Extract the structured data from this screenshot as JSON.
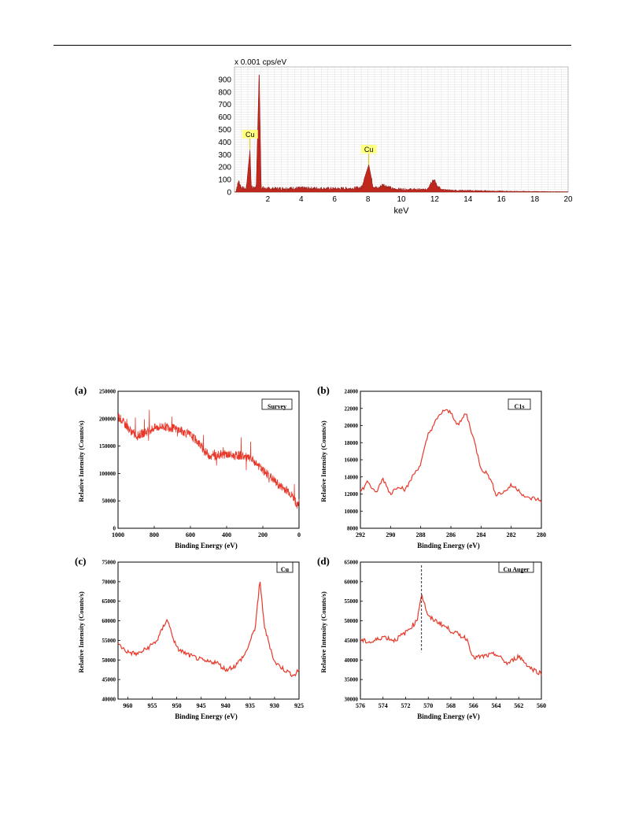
{
  "page": {
    "header_rule": true
  },
  "eds": {
    "unit_label": "x 0.001 cps/eV",
    "xlabel": "keV",
    "peak_labels": [
      "Cu",
      "Cu"
    ],
    "colors": {
      "fill": "#c0281e",
      "stroke": "#8b1410",
      "label_bg": "#ffff80",
      "grid": "#d9d9d9"
    }
  },
  "xps": {
    "panels": [
      {
        "letter": "(a)",
        "legend": "Survey",
        "xlabel": "Binding Energy (eV)",
        "ylabel": "Relative Intensity (Counts/s)"
      },
      {
        "letter": "(b)",
        "legend": "C1s",
        "xlabel": "Binding Energy (eV)",
        "ylabel": "Relative Intensity (Counts/s)"
      },
      {
        "letter": "(c)",
        "legend": "Cu",
        "xlabel": "Binding Energy (eV)",
        "ylabel": "Relative Intensity (Counts/s)"
      },
      {
        "letter": "(d)",
        "legend": "Cu Auger",
        "xlabel": "Binding Energy (eV)",
        "ylabel": "Relative Intensity (Counts/s)"
      }
    ],
    "line_color": "#e8382a"
  },
  "chart_data": [
    {
      "type": "area",
      "xlabel": "keV",
      "ylabel": "x 0.001 cps/eV",
      "xlim": [
        0,
        20
      ],
      "ylim": [
        0,
        1000
      ],
      "xticks": [
        2,
        4,
        6,
        8,
        10,
        12,
        14,
        16,
        18,
        20
      ],
      "yticks": [
        0,
        100,
        200,
        300,
        400,
        500,
        600,
        700,
        800,
        900
      ],
      "grid": true,
      "x": [
        0.1,
        0.25,
        0.4,
        0.55,
        0.7,
        0.93,
        1.0,
        1.1,
        1.3,
        1.48,
        1.6,
        1.8,
        2.2,
        3.0,
        4.0,
        5.0,
        6.0,
        7.0,
        7.6,
        8.05,
        8.3,
        8.6,
        8.9,
        9.5,
        10.5,
        11.5,
        11.9,
        12.1,
        12.4,
        13.0,
        14.0,
        15.0,
        16.0,
        17.0,
        18.0,
        19.0,
        20.0
      ],
      "y": [
        20,
        90,
        40,
        30,
        25,
        340,
        60,
        30,
        40,
        975,
        40,
        30,
        28,
        30,
        32,
        30,
        28,
        30,
        35,
        220,
        50,
        28,
        60,
        25,
        22,
        20,
        100,
        60,
        18,
        15,
        12,
        10,
        8,
        6,
        5,
        4,
        3
      ],
      "annotations": [
        {
          "text": "Cu",
          "x": 0.93,
          "y": 340
        },
        {
          "text": "Cu",
          "x": 8.05,
          "y": 220
        }
      ]
    },
    {
      "type": "line",
      "title": "Survey",
      "xlabel": "Binding Energy (eV)",
      "ylabel": "Relative Intensity (Counts/s)",
      "xlim": [
        1000,
        0
      ],
      "ylim": [
        0,
        250000
      ],
      "xticks": [
        1000,
        800,
        600,
        400,
        200,
        0
      ],
      "yticks": [
        0,
        50000,
        100000,
        150000,
        200000,
        250000
      ],
      "x": [
        1000,
        950,
        900,
        850,
        800,
        750,
        700,
        650,
        600,
        560,
        520,
        480,
        440,
        400,
        360,
        320,
        280,
        240,
        200,
        170,
        140,
        110,
        80,
        60,
        40,
        20,
        10,
        0
      ],
      "y": [
        205000,
        185000,
        168000,
        175000,
        183000,
        186000,
        183000,
        178000,
        170000,
        158000,
        140000,
        130000,
        134000,
        135000,
        132000,
        133000,
        128000,
        120000,
        105000,
        98000,
        88000,
        78000,
        72000,
        68000,
        60000,
        50000,
        38000,
        50000
      ]
    },
    {
      "type": "line",
      "title": "C1s",
      "xlabel": "Binding Energy (eV)",
      "ylabel": "Relative Intensity (Counts/s)",
      "xlim": [
        292,
        280
      ],
      "ylim": [
        8000,
        24000
      ],
      "xticks": [
        292,
        290,
        288,
        286,
        284,
        282,
        280
      ],
      "yticks": [
        8000,
        10000,
        12000,
        14000,
        16000,
        18000,
        20000,
        22000,
        24000
      ],
      "x": [
        292,
        291.5,
        291,
        290.5,
        290,
        289.5,
        289,
        288.5,
        288,
        287.5,
        287,
        286.5,
        286,
        285.5,
        285,
        284.5,
        284,
        283.5,
        283,
        282.5,
        282,
        281.5,
        281,
        280.5,
        280
      ],
      "y": [
        12200,
        13500,
        12000,
        13800,
        12000,
        13000,
        12500,
        14200,
        15500,
        19000,
        20500,
        21800,
        21500,
        20000,
        21500,
        18500,
        15000,
        14200,
        12000,
        12200,
        13000,
        12500,
        11500,
        11500,
        11200
      ]
    },
    {
      "type": "line",
      "title": "Cu",
      "xlabel": "Binding Energy (eV)",
      "ylabel": "Relative Intensity (Counts/s)",
      "xlim": [
        962,
        925
      ],
      "ylim": [
        40000,
        75000
      ],
      "xticks": [
        960,
        955,
        950,
        945,
        940,
        935,
        930,
        925
      ],
      "yticks": [
        40000,
        45000,
        50000,
        55000,
        60000,
        65000,
        70000,
        75000
      ],
      "x": [
        962,
        960,
        958,
        956,
        954,
        952,
        950,
        948,
        946,
        944,
        942,
        940,
        938,
        936,
        934,
        933,
        932,
        930,
        928,
        926,
        925
      ],
      "y": [
        54000,
        52000,
        51500,
        53000,
        55000,
        60500,
        53000,
        51500,
        50500,
        49500,
        49500,
        47500,
        48500,
        51500,
        58000,
        70000,
        58000,
        49500,
        47500,
        46000,
        47500
      ]
    },
    {
      "type": "line",
      "title": "Cu Auger",
      "xlabel": "Binding Energy (eV)",
      "ylabel": "Relative Intensity (Counts/s)",
      "xlim": [
        576,
        560
      ],
      "ylim": [
        30000,
        65000
      ],
      "xticks": [
        576,
        574,
        572,
        570,
        568,
        566,
        564,
        562,
        560
      ],
      "yticks": [
        30000,
        35000,
        40000,
        45000,
        50000,
        55000,
        60000,
        65000
      ],
      "x": [
        576,
        575,
        574,
        573,
        572,
        571,
        570.6,
        570,
        569,
        568,
        567,
        566.6,
        566,
        565,
        564,
        563,
        562,
        561,
        560
      ],
      "y": [
        45000,
        44500,
        46000,
        45000,
        47000,
        50000,
        57000,
        51000,
        49500,
        47500,
        46000,
        45500,
        40500,
        41000,
        41500,
        39000,
        41000,
        38000,
        36500
      ],
      "annotations": [
        {
          "type": "vline",
          "x": 570.6,
          "style": "dashed"
        }
      ]
    }
  ]
}
